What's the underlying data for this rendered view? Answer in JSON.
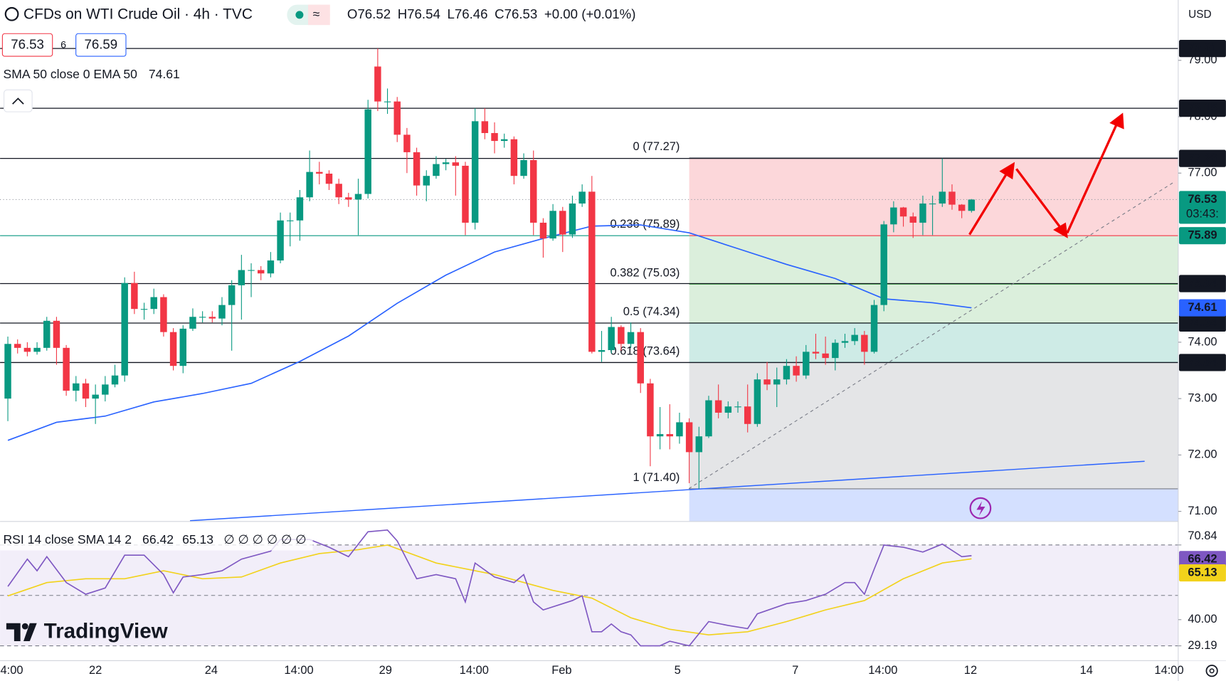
{
  "header": {
    "symbol": "CFDs on WTI Crude Oil · 4h · TVC",
    "ohlc": [
      "O76.52",
      "H76.54",
      "L76.46",
      "C76.53",
      "+0.00 (+0.01%)"
    ],
    "bid": 76.53,
    "spread": 6,
    "ask": 76.59,
    "currency": "USD",
    "logo": "TradingView"
  },
  "chart_data": [
    {
      "type": "candlestick",
      "legend": "SMA 50 close 0 EMA 50",
      "xlim": [
        -0.8,
        120.24
      ],
      "ylim": [
        70.82,
        80.07
      ],
      "xticks": [
        {
          "value": 0.4,
          "label": "4:00"
        },
        {
          "value": 9.0,
          "label": "22"
        },
        {
          "value": 20.9,
          "label": "24"
        },
        {
          "value": 29.9,
          "label": "14:00"
        },
        {
          "value": 38.8,
          "label": "29"
        },
        {
          "value": 47.9,
          "label": "14:00"
        },
        {
          "value": 56.9,
          "label": "Feb"
        },
        {
          "value": 68.8,
          "label": "5"
        },
        {
          "value": 80.9,
          "label": "7"
        },
        {
          "value": 89.9,
          "label": "14:00"
        },
        {
          "value": 98.9,
          "label": "12"
        },
        {
          "value": 110.8,
          "label": "14"
        },
        {
          "value": 119.3,
          "label": "14:00"
        }
      ],
      "yticks": [
        {
          "value": 79,
          "label": "79.00"
        },
        {
          "value": 78,
          "label": "78.00"
        },
        {
          "value": 77,
          "label": "77.00"
        },
        {
          "value": 74,
          "label": "74.00"
        },
        {
          "value": 73,
          "label": "73.00"
        },
        {
          "value": 72,
          "label": "72.00"
        },
        {
          "value": 71,
          "label": "71.00"
        }
      ],
      "up_color": "#089981",
      "down_color": "#f23645",
      "open": [
        73.0,
        73.97,
        73.9,
        73.83,
        73.9,
        74.38,
        73.9,
        73.14,
        73.27,
        73.0,
        73.07,
        73.25,
        73.41,
        75.05,
        74.59,
        74.59,
        74.8,
        74.18,
        73.58,
        74.24,
        74.45,
        74.45,
        74.42,
        74.66,
        75.01,
        75.28,
        75.28,
        75.22,
        75.45,
        76.16,
        76.16,
        76.57,
        77.02,
        76.99,
        76.81,
        76.57,
        76.53,
        76.63,
        78.89,
        78.27,
        78.27,
        77.68,
        77.37,
        76.78,
        76.95,
        77.16,
        77.19,
        77.13,
        76.12,
        77.92,
        77.71,
        77.57,
        77.6,
        76.95,
        77.23,
        76.12,
        75.84,
        76.33,
        75.91,
        76.46,
        76.67,
        73.83,
        73.86,
        74.27,
        73.97,
        74.18,
        73.27,
        72.33,
        72.37,
        72.33,
        72.58,
        72.05,
        72.33,
        72.97,
        72.75,
        72.86,
        72.86,
        72.55,
        73.34,
        73.25,
        73.34,
        73.58,
        73.41,
        73.83,
        73.8,
        73.72,
        73.99,
        74.02,
        74.13,
        73.83,
        74.66,
        76.09,
        76.39,
        76.23,
        76.12,
        76.46,
        76.46,
        76.67,
        76.44,
        76.33
      ],
      "high": [
        74.1,
        74.05,
        74.0,
        74.0,
        74.45,
        74.45,
        73.95,
        73.4,
        73.35,
        73.25,
        73.4,
        73.6,
        75.15,
        75.25,
        74.7,
        74.95,
        74.85,
        74.25,
        74.3,
        74.6,
        74.55,
        74.55,
        74.8,
        75.1,
        75.55,
        75.4,
        75.35,
        75.6,
        76.3,
        76.3,
        76.7,
        77.4,
        77.2,
        77.05,
        76.9,
        76.65,
        76.9,
        78.3,
        79.21,
        78.5,
        78.35,
        77.8,
        77.45,
        77.05,
        77.3,
        77.25,
        77.3,
        77.2,
        78.15,
        78.15,
        77.9,
        77.7,
        77.65,
        77.35,
        77.4,
        76.2,
        76.45,
        76.4,
        76.6,
        76.8,
        76.95,
        74.2,
        74.45,
        74.3,
        74.35,
        74.25,
        73.35,
        72.85,
        72.9,
        72.75,
        72.65,
        72.5,
        73.05,
        73.25,
        72.95,
        72.95,
        73.25,
        73.45,
        73.65,
        73.55,
        73.7,
        73.75,
        73.95,
        74.15,
        74.1,
        74.05,
        74.15,
        74.25,
        74.2,
        74.75,
        76.15,
        76.5,
        76.4,
        76.3,
        76.6,
        76.6,
        77.26,
        76.8,
        76.45,
        76.54
      ],
      "low": [
        72.6,
        73.8,
        73.75,
        73.78,
        73.85,
        73.6,
        73.05,
        72.95,
        72.85,
        72.55,
        72.95,
        73.2,
        73.3,
        74.5,
        74.4,
        74.5,
        74.1,
        73.5,
        73.45,
        74.2,
        74.35,
        74.35,
        74.3,
        73.85,
        74.4,
        74.8,
        75.1,
        75.15,
        75.4,
        75.7,
        75.8,
        76.5,
        76.8,
        76.7,
        76.45,
        76.4,
        75.9,
        76.55,
        78.1,
        78.05,
        77.55,
        77.0,
        76.6,
        76.5,
        76.9,
        77.05,
        76.6,
        75.9,
        76.0,
        77.6,
        77.35,
        77.45,
        76.8,
        76.9,
        75.9,
        75.5,
        75.8,
        75.6,
        75.85,
        76.4,
        73.8,
        73.65,
        73.8,
        73.85,
        73.9,
        73.1,
        71.8,
        72.1,
        72.1,
        72.2,
        71.5,
        71.4,
        72.3,
        72.65,
        72.65,
        72.75,
        72.4,
        72.5,
        73.15,
        72.85,
        73.25,
        73.3,
        73.35,
        73.7,
        73.6,
        73.5,
        73.9,
        73.95,
        73.6,
        73.8,
        74.55,
        75.95,
        76.05,
        75.85,
        75.9,
        75.9,
        76.4,
        76.35,
        76.2,
        76.3
      ],
      "close": [
        73.97,
        73.9,
        73.83,
        73.9,
        74.38,
        73.9,
        73.14,
        73.27,
        73.0,
        73.07,
        73.25,
        73.41,
        75.05,
        74.59,
        74.59,
        74.8,
        74.18,
        73.58,
        74.24,
        74.45,
        74.45,
        74.42,
        74.66,
        75.01,
        75.28,
        75.28,
        75.22,
        75.45,
        76.16,
        76.16,
        76.57,
        77.02,
        76.99,
        76.81,
        76.57,
        76.53,
        76.63,
        78.13,
        78.27,
        78.27,
        77.68,
        77.37,
        76.78,
        76.95,
        77.16,
        77.19,
        77.13,
        76.12,
        77.92,
        77.71,
        77.57,
        77.6,
        76.95,
        77.23,
        76.12,
        75.84,
        76.33,
        75.91,
        76.46,
        76.67,
        73.83,
        73.86,
        74.27,
        73.97,
        74.18,
        73.27,
        72.33,
        72.37,
        72.33,
        72.58,
        72.05,
        72.33,
        72.97,
        72.75,
        72.86,
        72.86,
        72.55,
        73.34,
        73.25,
        73.34,
        73.58,
        73.41,
        73.83,
        73.8,
        73.72,
        73.99,
        74.02,
        74.13,
        73.83,
        74.66,
        76.09,
        76.39,
        76.23,
        76.12,
        76.46,
        76.46,
        76.67,
        76.44,
        76.33,
        76.53
      ],
      "ema": {
        "color": "#2962ff",
        "x": [
          0,
          5,
          10,
          15,
          20,
          25,
          30,
          35,
          40,
          45,
          50,
          55,
          60,
          65,
          70,
          75,
          80,
          85,
          90,
          95,
          99
        ],
        "values": [
          72.26,
          72.58,
          72.69,
          72.94,
          73.09,
          73.27,
          73.66,
          74.11,
          74.69,
          75.19,
          75.6,
          75.84,
          76.06,
          76.08,
          75.94,
          75.66,
          75.38,
          75.13,
          74.77,
          74.7,
          74.61
        ]
      },
      "levels": [
        79.21,
        78.15,
        77.26,
        75.04,
        74.34,
        73.64
      ],
      "hline": 75.89,
      "hline_color": "#089981",
      "last": 76.53,
      "countdown": "03:43:",
      "fib": {
        "start": 70.0,
        "extension_color": "#2962ff",
        "levels": [
          {
            "value": 77.27,
            "label": "0 (77.27)",
            "color": "#787b86"
          },
          {
            "value": 75.89,
            "label": "0.236 (75.89)",
            "color": "#f23645"
          },
          {
            "value": 75.03,
            "label": "0.382 (75.03)",
            "color": "#4caf50"
          },
          {
            "value": 74.34,
            "label": "0.5 (74.34)",
            "color": "#4caf50"
          },
          {
            "value": 73.64,
            "label": "0.618 (73.64)",
            "color": "#089981"
          },
          {
            "value": 71.4,
            "label": "1 (71.40)",
            "color": "#787b86"
          }
        ]
      }
    },
    {
      "type": "line",
      "title": "RSI 14 close SMA 14 2",
      "placeholders": "∅ ∅ ∅ ∅ ∅ ∅",
      "ylim": [
        23.06,
        80.53
      ],
      "yticks": [
        70.84,
        {
          "value": 40,
          "label": "40.00"
        },
        29.19
      ],
      "band_lines": [
        70.84,
        50,
        29.19
      ],
      "band_color": "#7e57c2",
      "series": [
        {
          "color": "#7e57c2",
          "x": [
            0,
            2,
            3,
            4,
            6,
            8,
            10,
            12,
            14,
            16,
            17,
            18,
            20,
            22,
            24,
            27,
            28,
            31,
            33,
            35,
            37,
            39,
            40,
            42,
            44,
            46,
            47,
            48,
            50,
            52,
            53,
            54,
            55,
            58,
            59,
            60,
            61,
            62,
            63,
            64,
            65,
            67,
            68,
            70,
            72,
            74,
            76,
            77,
            80,
            82,
            84,
            86,
            87,
            88,
            89,
            90,
            92,
            94,
            96,
            98,
            99
          ],
          "values": [
            53.7,
            65.0,
            60.2,
            66.0,
            55.3,
            50.5,
            53.1,
            66.6,
            66.6,
            58.6,
            51.1,
            57.6,
            58.6,
            60.2,
            65.0,
            68.3,
            73.1,
            73.1,
            69.9,
            66.0,
            76.3,
            77.0,
            72.5,
            56.9,
            58.6,
            56.9,
            47.3,
            63.4,
            57.6,
            55.3,
            58.6,
            47.3,
            44.0,
            47.9,
            49.9,
            35.0,
            35.0,
            38.2,
            35.0,
            33.7,
            29.2,
            29.2,
            31.1,
            29.2,
            39.2,
            37.6,
            36.3,
            42.4,
            46.6,
            47.9,
            50.5,
            55.3,
            55.3,
            50.5,
            60.8,
            70.8,
            69.9,
            67.9,
            71.2,
            66.0,
            66.42
          ]
        },
        {
          "color": "#f2d21b",
          "x": [
            0,
            4,
            8,
            12,
            16,
            20,
            24,
            28,
            32,
            36,
            39,
            44,
            50,
            56,
            60,
            64,
            68,
            72,
            76,
            80,
            84,
            88,
            92,
            96,
            99
          ],
          "values": [
            49.8,
            55.3,
            56.9,
            56.9,
            60.2,
            56.9,
            57.6,
            63.4,
            67.3,
            68.9,
            70.8,
            63.4,
            58.6,
            52.1,
            48.9,
            40.8,
            36.0,
            33.7,
            35.0,
            39.2,
            44.0,
            47.9,
            56.9,
            63.4,
            65.13
          ]
        }
      ]
    }
  ]
}
